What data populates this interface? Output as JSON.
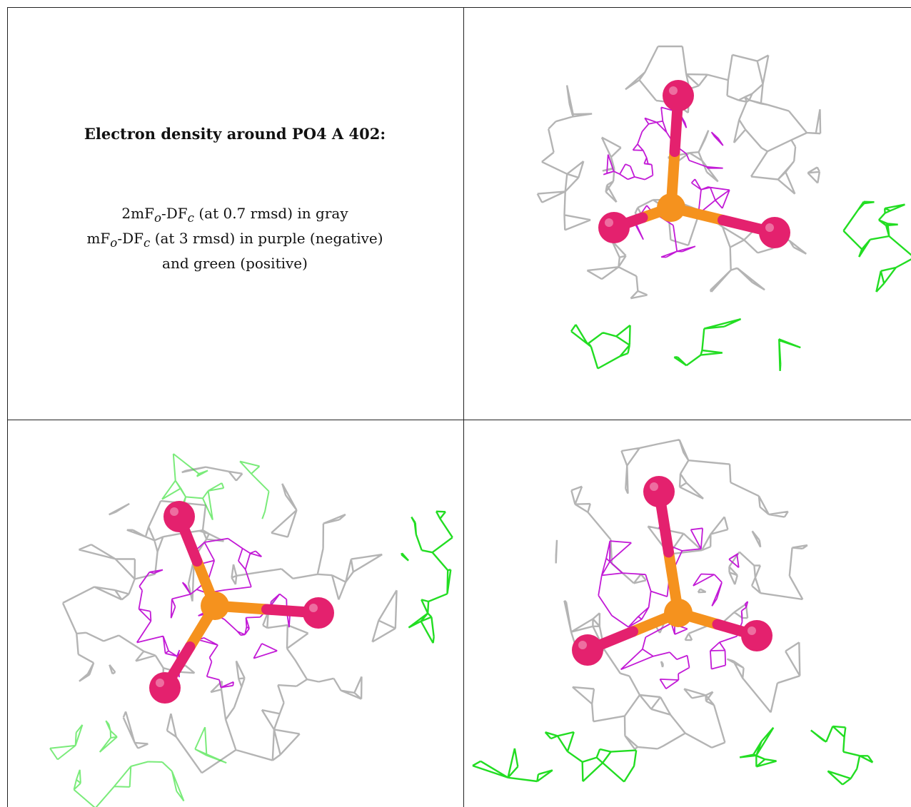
{
  "caption": {
    "title": "Electron density around PO4 A 402:",
    "line1": {
      "prefix": "2mF",
      "sub1": "o",
      "mid": "-DF",
      "sub2": "c",
      "suffix": " (at 0.7 rmsd) in gray"
    },
    "line2": {
      "prefix": "mF",
      "sub1": "o",
      "mid": "-DF",
      "sub2": "c",
      "suffix": " (at 3 rmsd) in purple (negative)"
    },
    "line3": "and green (positive)"
  },
  "colors": {
    "gray_mesh": "#b4b4b4",
    "negative_mesh": "#c21ad6",
    "positive_mesh": "#22dd22",
    "oxygen": "#e4216e",
    "phosphorus": "#f5921e"
  },
  "panels": [
    {
      "name": "view-1"
    },
    {
      "name": "view-2"
    },
    {
      "name": "view-3"
    }
  ]
}
